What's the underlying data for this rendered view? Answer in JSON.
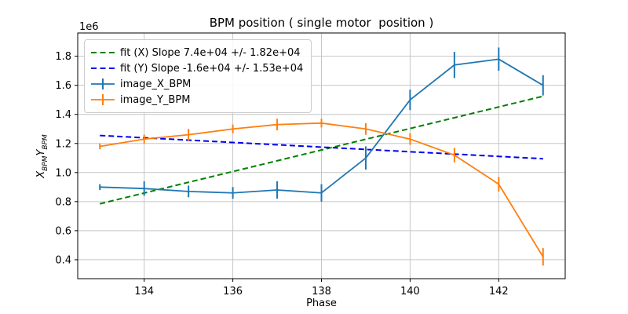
{
  "figure": {
    "title": "BPM position ( single motor  position )",
    "xlabel": "Phase",
    "offset_label": "1e6",
    "ylabel": {
      "x_var": "X",
      "x_sub": "BPM",
      "y_var": "Y",
      "y_sub": "BPM"
    }
  },
  "colors": {
    "series_x": "#1f77b4",
    "series_y": "#ff7f0e",
    "fit_x": "#008000",
    "fit_y": "#0000ee",
    "grid": "#c6c6c6",
    "spine": "#000000"
  },
  "chart_data": {
    "type": "line",
    "title": "BPM position ( single motor  position )",
    "xlabel": "Phase",
    "ylabel": "X_BPM Y_BPM",
    "y_offset_multiplier": "1e6",
    "grid": true,
    "legend_position": "upper left",
    "xlim": [
      132.5,
      143.5
    ],
    "ylim_1e6": [
      0.27,
      1.96
    ],
    "xticks": [
      134,
      136,
      138,
      140,
      142
    ],
    "yticks_1e6": [
      0.4,
      0.6,
      0.8,
      1.0,
      1.2,
      1.4,
      1.6,
      1.8
    ],
    "x": [
      133,
      134,
      135,
      136,
      137,
      138,
      139,
      140,
      141,
      142,
      143
    ],
    "series": [
      {
        "id": "fit_x",
        "type": "fit",
        "name": "fit (X) Slope 7.4e+04 +/- 1.82e+04",
        "slope": "7.4e+04",
        "slope_err": "1.82e+04",
        "color_key": "fit_x",
        "x": [
          133,
          143
        ],
        "y_1e6": [
          0.785,
          1.525
        ]
      },
      {
        "id": "fit_y",
        "type": "fit",
        "name": "fit (Y) Slope -1.6e+04 +/- 1.53e+04",
        "slope": "-1.6e+04",
        "slope_err": "1.53e+04",
        "color_key": "fit_y",
        "x": [
          133,
          143
        ],
        "y_1e6": [
          1.255,
          1.095
        ]
      },
      {
        "id": "image_X_BPM",
        "type": "errorbar",
        "name": "image_X_BPM",
        "color_key": "series_x",
        "y_1e6": [
          0.9,
          0.89,
          0.87,
          0.86,
          0.88,
          0.86,
          1.1,
          1.5,
          1.74,
          1.78,
          1.6
        ],
        "yerr_1e6": [
          0.02,
          0.05,
          0.04,
          0.04,
          0.06,
          0.06,
          0.08,
          0.07,
          0.09,
          0.08,
          0.07
        ]
      },
      {
        "id": "image_Y_BPM",
        "type": "errorbar",
        "name": "image_Y_BPM",
        "color_key": "series_y",
        "y_1e6": [
          1.18,
          1.23,
          1.26,
          1.3,
          1.33,
          1.34,
          1.3,
          1.23,
          1.12,
          0.92,
          0.42
        ],
        "yerr_1e6": [
          0.02,
          0.03,
          0.04,
          0.03,
          0.04,
          0.03,
          0.04,
          0.04,
          0.05,
          0.05,
          0.06
        ]
      }
    ]
  }
}
